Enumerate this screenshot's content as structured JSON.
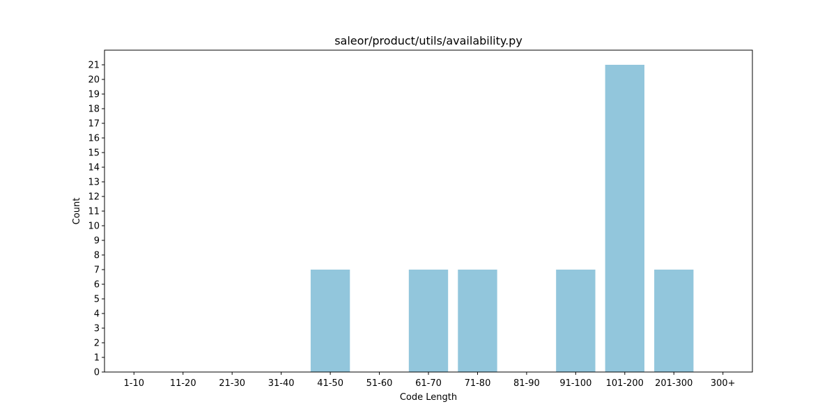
{
  "chart_data": {
    "type": "bar",
    "title": "saleor/product/utils/availability.py",
    "xlabel": "Code Length",
    "ylabel": "Count",
    "categories": [
      "1-10",
      "11-20",
      "21-30",
      "31-40",
      "41-50",
      "51-60",
      "61-70",
      "71-80",
      "81-90",
      "91-100",
      "101-200",
      "201-300",
      "300+"
    ],
    "values": [
      0,
      0,
      0,
      0,
      7,
      0,
      7,
      7,
      0,
      7,
      21,
      7,
      0
    ],
    "ylim": [
      0,
      22
    ],
    "yticks": [
      0,
      1,
      2,
      3,
      4,
      5,
      6,
      7,
      8,
      9,
      10,
      11,
      12,
      13,
      14,
      15,
      16,
      17,
      18,
      19,
      20,
      21
    ],
    "bar_color": "#92c6dc",
    "grid": false,
    "legend": "none"
  }
}
